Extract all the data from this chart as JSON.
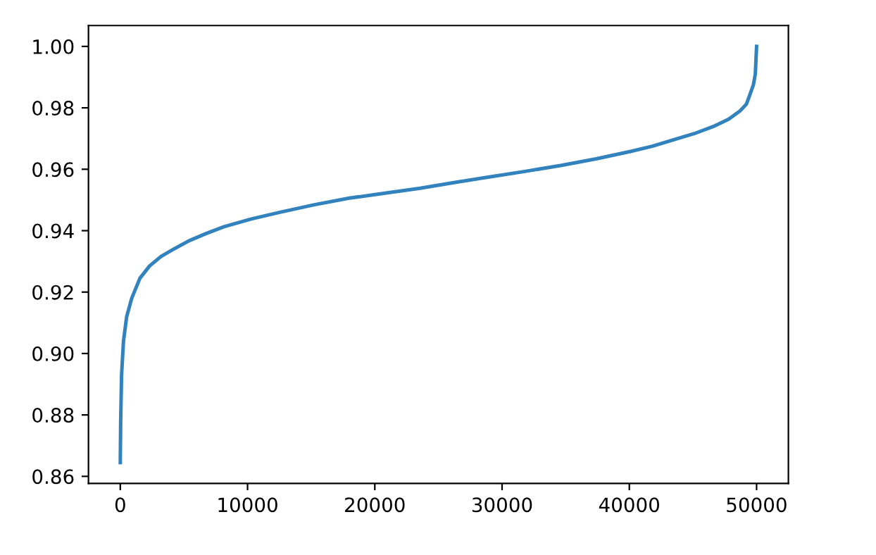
{
  "chart_data": {
    "type": "line",
    "series": [
      {
        "color": "#3182bd",
        "x": [
          0,
          30,
          100,
          250,
          500,
          900,
          1540,
          2300,
          3200,
          4200,
          5400,
          6700,
          8150,
          10300,
          12550,
          15200,
          18000,
          20800,
          23570,
          26300,
          29000,
          31800,
          34600,
          37400,
          40100,
          41800,
          43400,
          45100,
          46700,
          47800,
          48700,
          49200,
          49450,
          49750,
          49900,
          50000
        ],
        "values": [
          0.8645,
          0.878,
          0.893,
          0.904,
          0.912,
          0.918,
          0.9245,
          0.9285,
          0.9316,
          0.934,
          0.9367,
          0.939,
          0.9413,
          0.9438,
          0.946,
          0.9484,
          0.9506,
          0.9522,
          0.9538,
          0.9557,
          0.9575,
          0.9593,
          0.9612,
          0.9634,
          0.9658,
          0.9675,
          0.9695,
          0.9716,
          0.9741,
          0.9763,
          0.979,
          0.9812,
          0.984,
          0.9875,
          0.991,
          1.0
        ]
      }
    ],
    "xlim": [
      -2500,
      52500
    ],
    "ylim": [
      0.8577,
      1.0068
    ],
    "xticks": [
      0,
      10000,
      20000,
      30000,
      40000,
      50000
    ],
    "yticks": [
      {
        "value": 0.86,
        "label": "0.86"
      },
      {
        "value": 0.88,
        "label": "0.88"
      },
      {
        "value": 0.9,
        "label": "0.90"
      },
      {
        "value": 0.92,
        "label": "0.92"
      },
      {
        "value": 0.94,
        "label": "0.94"
      },
      {
        "value": 0.96,
        "label": "0.96"
      },
      {
        "value": 0.98,
        "label": "0.98"
      },
      {
        "value": 1.0,
        "label": "1.00"
      }
    ],
    "grid": false
  }
}
